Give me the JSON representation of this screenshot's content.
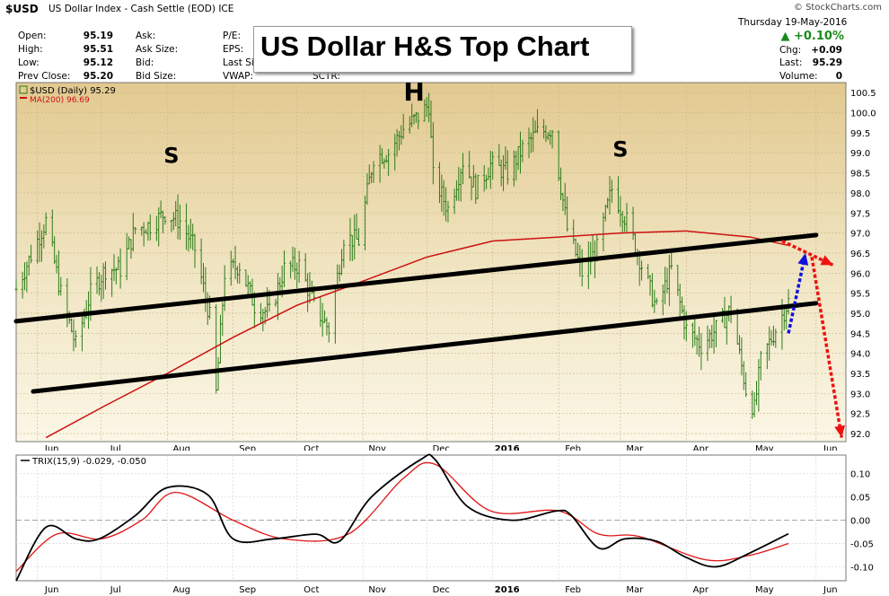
{
  "header": {
    "symbol": "$USD",
    "description": "US Dollar Index - Cash Settle (EOD)",
    "exchange": "ICE",
    "watermark": "© StockCharts.com",
    "date": "Thursday  19-May-2016",
    "change_pct": "▲ +0.10%",
    "quote": [
      {
        "label": "Open:",
        "value": "95.19"
      },
      {
        "label": "High:",
        "value": "95.51"
      },
      {
        "label": "Low:",
        "value": "95.12"
      },
      {
        "label": "Prev Close:",
        "value": "95.20"
      }
    ],
    "quote2": [
      "Ask:",
      "Ask Size:",
      "Bid:",
      "Bid Size:"
    ],
    "quote3": [
      "P/E:",
      "EPS:",
      "Last Size:",
      "VWAP:"
    ],
    "sctr_label": "SCTR:",
    "right": [
      {
        "label": "Chg:",
        "value": "+0.09"
      },
      {
        "label": "Last:",
        "value": "95.29"
      },
      {
        "label": "Volume:",
        "value": "0"
      }
    ]
  },
  "overlay_title": "US Dollar H&S Top Chart",
  "colors": {
    "price_bars": "#2e7d1a",
    "ma200": "#cc1111",
    "trendline": "#000000",
    "projection_red": "#ee1111",
    "projection_blue": "#1111dd",
    "positive": "#1a8a1a"
  },
  "chart_data": [
    {
      "type": "ohlc",
      "legend": [
        "$USD (Daily) 95.29",
        "MA(200) 96.69"
      ],
      "x_tick_labels": [
        "Jun",
        "Jul",
        "Aug",
        "Sep",
        "Oct",
        "Nov",
        "Dec",
        "2016",
        "Feb",
        "Mar",
        "Apr",
        "May",
        "Jun"
      ],
      "y_tick_labels": [
        "92.0",
        "92.5",
        "93.0",
        "93.5",
        "94.0",
        "94.5",
        "95.0",
        "95.5",
        "96.0",
        "96.5",
        "97.0",
        "97.5",
        "98.0",
        "98.5",
        "99.0",
        "99.5",
        "100.0",
        "100.5"
      ],
      "ylim": [
        91.8,
        100.75
      ],
      "annotations": [
        {
          "text": "S",
          "x": "2015-08-03",
          "y": 98.75
        },
        {
          "text": "H",
          "x": "2015-11-25",
          "y": 100.3
        },
        {
          "text": "S",
          "x": "2016-03-01",
          "y": 98.9
        }
      ],
      "price_series": [
        {
          "date": "2015-05-22",
          "close": 95.6
        },
        {
          "date": "2015-06-05",
          "close": 97.3
        },
        {
          "date": "2015-06-12",
          "close": 95.5
        },
        {
          "date": "2015-06-19",
          "close": 94.2
        },
        {
          "date": "2015-06-26",
          "close": 95.5
        },
        {
          "date": "2015-07-03",
          "close": 96.1
        },
        {
          "date": "2015-07-10",
          "close": 96.1
        },
        {
          "date": "2015-07-17",
          "close": 97.1
        },
        {
          "date": "2015-07-24",
          "close": 97.2
        },
        {
          "date": "2015-07-31",
          "close": 97.5
        },
        {
          "date": "2015-08-07",
          "close": 97.3
        },
        {
          "date": "2015-08-14",
          "close": 96.6
        },
        {
          "date": "2015-08-21",
          "close": 94.9
        },
        {
          "date": "2015-08-24",
          "close": 93.0
        },
        {
          "date": "2015-08-28",
          "close": 96.0
        },
        {
          "date": "2015-09-04",
          "close": 96.2
        },
        {
          "date": "2015-09-11",
          "close": 95.2
        },
        {
          "date": "2015-09-18",
          "close": 95.0
        },
        {
          "date": "2015-09-25",
          "close": 96.1
        },
        {
          "date": "2015-10-02",
          "close": 96.2
        },
        {
          "date": "2015-10-09",
          "close": 95.2
        },
        {
          "date": "2015-10-16",
          "close": 94.6
        },
        {
          "date": "2015-10-23",
          "close": 96.9
        },
        {
          "date": "2015-10-30",
          "close": 96.8
        },
        {
          "date": "2015-11-06",
          "close": 98.9
        },
        {
          "date": "2015-11-13",
          "close": 99.0
        },
        {
          "date": "2015-11-20",
          "close": 99.6
        },
        {
          "date": "2015-11-27",
          "close": 99.9
        },
        {
          "date": "2015-12-02",
          "close": 100.2
        },
        {
          "date": "2015-12-04",
          "close": 98.4
        },
        {
          "date": "2015-12-11",
          "close": 97.6
        },
        {
          "date": "2015-12-18",
          "close": 98.8
        },
        {
          "date": "2015-12-24",
          "close": 98.1
        },
        {
          "date": "2015-12-31",
          "close": 98.7
        },
        {
          "date": "2016-01-08",
          "close": 98.5
        },
        {
          "date": "2016-01-15",
          "close": 99.1
        },
        {
          "date": "2016-01-22",
          "close": 99.5
        },
        {
          "date": "2016-01-29",
          "close": 99.6
        },
        {
          "date": "2016-02-05",
          "close": 97.1
        },
        {
          "date": "2016-02-12",
          "close": 96.0
        },
        {
          "date": "2016-02-19",
          "close": 96.6
        },
        {
          "date": "2016-02-26",
          "close": 98.1
        },
        {
          "date": "2016-03-04",
          "close": 97.3
        },
        {
          "date": "2016-03-11",
          "close": 96.2
        },
        {
          "date": "2016-03-18",
          "close": 95.1
        },
        {
          "date": "2016-03-25",
          "close": 96.1
        },
        {
          "date": "2016-04-01",
          "close": 94.6
        },
        {
          "date": "2016-04-08",
          "close": 94.2
        },
        {
          "date": "2016-04-15",
          "close": 94.6
        },
        {
          "date": "2016-04-22",
          "close": 95.1
        },
        {
          "date": "2016-04-29",
          "close": 93.1
        },
        {
          "date": "2016-05-03",
          "close": 92.6
        },
        {
          "date": "2016-05-06",
          "close": 93.8
        },
        {
          "date": "2016-05-13",
          "close": 94.6
        },
        {
          "date": "2016-05-19",
          "close": 95.29
        }
      ],
      "ma200": [
        {
          "date": "2015-06-05",
          "value": 91.9
        },
        {
          "date": "2015-07-03",
          "value": 92.7
        },
        {
          "date": "2015-08-01",
          "value": 93.5
        },
        {
          "date": "2015-09-01",
          "value": 94.4
        },
        {
          "date": "2015-10-01",
          "value": 95.2
        },
        {
          "date": "2015-11-01",
          "value": 95.8
        },
        {
          "date": "2015-12-01",
          "value": 96.4
        },
        {
          "date": "2016-01-01",
          "value": 96.8
        },
        {
          "date": "2016-02-01",
          "value": 96.9
        },
        {
          "date": "2016-03-01",
          "value": 97.0
        },
        {
          "date": "2016-04-01",
          "value": 97.05
        },
        {
          "date": "2016-05-01",
          "value": 96.9
        },
        {
          "date": "2016-05-19",
          "value": 96.69
        }
      ],
      "trendlines": [
        {
          "name": "upper",
          "from": {
            "date": "2015-05-22",
            "value": 94.8
          },
          "to": {
            "date": "2016-06-01",
            "value": 96.95
          }
        },
        {
          "name": "lower",
          "from": {
            "date": "2015-05-30",
            "value": 93.05
          },
          "to": {
            "date": "2016-06-01",
            "value": 95.25
          }
        }
      ],
      "projections": [
        {
          "color": "blue",
          "points": [
            {
              "date": "2016-05-19",
              "value": 94.5
            },
            {
              "date": "2016-05-27",
              "value": 96.5
            }
          ]
        },
        {
          "color": "red",
          "points": [
            {
              "date": "2016-05-16",
              "value": 96.8
            },
            {
              "date": "2016-06-09",
              "value": 96.2
            }
          ]
        },
        {
          "color": "red",
          "points": [
            {
              "date": "2016-05-30",
              "value": 96.4
            },
            {
              "date": "2016-06-13",
              "value": 91.9
            }
          ]
        }
      ]
    },
    {
      "type": "line",
      "legend": [
        "TRIX(15,9) -0.029, -0.050"
      ],
      "x_tick_labels": [
        "Jun",
        "Jul",
        "Aug",
        "Sep",
        "Oct",
        "Nov",
        "Dec",
        "2016",
        "Feb",
        "Mar",
        "Apr",
        "May",
        "Jun"
      ],
      "y_tick_labels": [
        "0.10",
        "0.05",
        "0.00",
        "-0.05",
        "-0.10"
      ],
      "ylim": [
        -0.13,
        0.14
      ],
      "series": [
        {
          "name": "TRIX",
          "points": [
            {
              "date": "2015-05-22",
              "value": -0.13
            },
            {
              "date": "2015-06-05",
              "value": -0.015
            },
            {
              "date": "2015-06-19",
              "value": -0.04
            },
            {
              "date": "2015-06-30",
              "value": -0.04
            },
            {
              "date": "2015-07-17",
              "value": 0.01
            },
            {
              "date": "2015-08-01",
              "value": 0.07
            },
            {
              "date": "2015-08-20",
              "value": 0.055
            },
            {
              "date": "2015-09-01",
              "value": -0.04
            },
            {
              "date": "2015-09-20",
              "value": -0.04
            },
            {
              "date": "2015-10-10",
              "value": -0.03
            },
            {
              "date": "2015-10-21",
              "value": -0.045
            },
            {
              "date": "2015-11-05",
              "value": 0.05
            },
            {
              "date": "2015-11-28",
              "value": 0.13
            },
            {
              "date": "2015-12-05",
              "value": 0.13
            },
            {
              "date": "2015-12-20",
              "value": 0.03
            },
            {
              "date": "2016-01-10",
              "value": 0.0
            },
            {
              "date": "2016-01-31",
              "value": 0.02
            },
            {
              "date": "2016-02-07",
              "value": 0.01
            },
            {
              "date": "2016-02-20",
              "value": -0.06
            },
            {
              "date": "2016-03-03",
              "value": -0.04
            },
            {
              "date": "2016-03-18",
              "value": -0.045
            },
            {
              "date": "2016-04-01",
              "value": -0.08
            },
            {
              "date": "2016-04-15",
              "value": -0.1
            },
            {
              "date": "2016-05-01",
              "value": -0.07
            },
            {
              "date": "2016-05-19",
              "value": -0.029
            }
          ]
        },
        {
          "name": "Signal",
          "points": [
            {
              "date": "2015-05-22",
              "value": -0.11
            },
            {
              "date": "2015-06-10",
              "value": -0.03
            },
            {
              "date": "2015-07-01",
              "value": -0.04
            },
            {
              "date": "2015-07-20",
              "value": 0.0
            },
            {
              "date": "2015-08-05",
              "value": 0.06
            },
            {
              "date": "2015-09-01",
              "value": 0.0
            },
            {
              "date": "2015-09-25",
              "value": -0.04
            },
            {
              "date": "2015-10-25",
              "value": -0.03
            },
            {
              "date": "2015-11-20",
              "value": 0.09
            },
            {
              "date": "2015-12-05",
              "value": 0.12
            },
            {
              "date": "2015-12-31",
              "value": 0.02
            },
            {
              "date": "2016-02-01",
              "value": 0.02
            },
            {
              "date": "2016-02-20",
              "value": -0.03
            },
            {
              "date": "2016-03-10",
              "value": -0.035
            },
            {
              "date": "2016-04-10",
              "value": -0.085
            },
            {
              "date": "2016-05-01",
              "value": -0.075
            },
            {
              "date": "2016-05-19",
              "value": -0.05
            }
          ]
        }
      ]
    }
  ]
}
